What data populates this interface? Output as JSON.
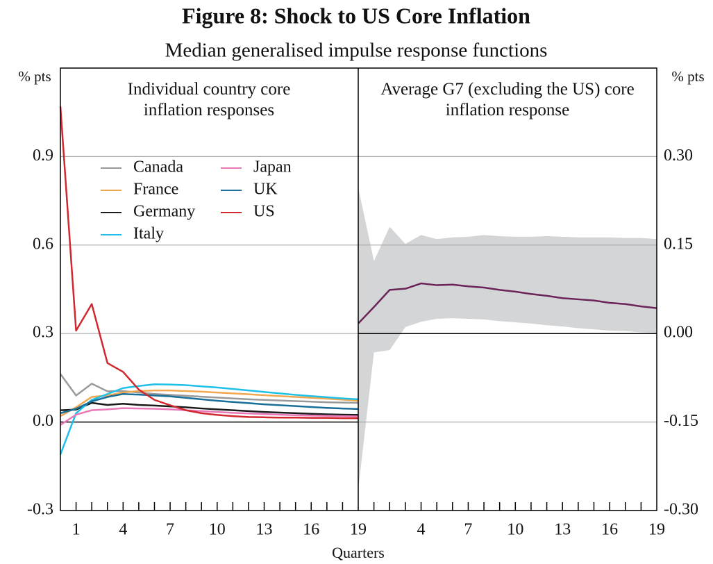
{
  "title": "Figure 8: Shock to US Core Inflation",
  "subtitle": "Median generalised impulse response functions",
  "x_label": "Quarters",
  "chart_data": [
    {
      "type": "line",
      "title": "Individual country core inflation responses",
      "y_label": "% pts",
      "x": [
        0,
        1,
        2,
        3,
        4,
        5,
        6,
        7,
        8,
        9,
        10,
        11,
        12,
        13,
        14,
        15,
        16,
        17,
        18,
        19
      ],
      "xlim": [
        0,
        19
      ],
      "xticks": [
        1,
        4,
        7,
        10,
        13,
        16,
        19
      ],
      "xminorticks": [
        1,
        2,
        3,
        4,
        5,
        6,
        7,
        8,
        9,
        10,
        11,
        12,
        13,
        14,
        15,
        16,
        17,
        18
      ],
      "ylim": [
        -0.3,
        1.2
      ],
      "yticks": [
        -0.3,
        {
          "value": 0,
          "label": "0.0"
        },
        0.3,
        0.6,
        0.9
      ],
      "grid": true,
      "series": [
        {
          "name": "Canada",
          "color": "#9a9a9a",
          "values": [
            0.163,
            0.09,
            0.13,
            0.104,
            0.105,
            0.1,
            0.095,
            0.092,
            0.089,
            0.086,
            0.083,
            0.08,
            0.077,
            0.075,
            0.073,
            0.071,
            0.069,
            0.067,
            0.066,
            0.065
          ]
        },
        {
          "name": "France",
          "color": "#f0a850",
          "values": [
            0.02,
            0.05,
            0.085,
            0.09,
            0.1,
            0.105,
            0.107,
            0.107,
            0.105,
            0.103,
            0.1,
            0.097,
            0.094,
            0.091,
            0.088,
            0.085,
            0.082,
            0.079,
            0.076,
            0.072
          ]
        },
        {
          "name": "Germany",
          "color": "#1a1a1a",
          "values": [
            0.04,
            0.042,
            0.065,
            0.058,
            0.062,
            0.058,
            0.056,
            0.053,
            0.05,
            0.046,
            0.043,
            0.04,
            0.037,
            0.034,
            0.032,
            0.03,
            0.028,
            0.026,
            0.025,
            0.024
          ]
        },
        {
          "name": "Italy",
          "color": "#1ec0e8",
          "values": [
            -0.11,
            0.03,
            0.075,
            0.095,
            0.115,
            0.122,
            0.128,
            0.127,
            0.125,
            0.121,
            0.117,
            0.112,
            0.107,
            0.102,
            0.097,
            0.092,
            0.088,
            0.084,
            0.08,
            0.077
          ]
        },
        {
          "name": "Japan",
          "color": "#e878b8",
          "values": [
            -0.01,
            0.025,
            0.04,
            0.043,
            0.047,
            0.046,
            0.045,
            0.043,
            0.04,
            0.037,
            0.034,
            0.031,
            0.029,
            0.027,
            0.025,
            0.023,
            0.022,
            0.021,
            0.02,
            0.019
          ]
        },
        {
          "name": "UK",
          "color": "#1a6e9a",
          "values": [
            0.03,
            0.045,
            0.07,
            0.085,
            0.095,
            0.093,
            0.09,
            0.087,
            0.082,
            0.077,
            0.072,
            0.068,
            0.064,
            0.06,
            0.057,
            0.054,
            0.051,
            0.048,
            0.046,
            0.044
          ]
        },
        {
          "name": "US",
          "color": "#d0282e",
          "values": [
            1.07,
            0.31,
            0.4,
            0.2,
            0.17,
            0.11,
            0.075,
            0.057,
            0.04,
            0.03,
            0.024,
            0.02,
            0.017,
            0.016,
            0.015,
            0.015,
            0.014,
            0.014,
            0.013,
            0.013
          ]
        }
      ]
    },
    {
      "type": "line",
      "title": "Average G7 (excluding the US) core inflation response",
      "y_label": "% pts",
      "x": [
        0,
        1,
        2,
        3,
        4,
        5,
        6,
        7,
        8,
        9,
        10,
        11,
        12,
        13,
        14,
        15,
        16,
        17,
        18,
        19
      ],
      "xlim": [
        0,
        19
      ],
      "xticks": [
        4,
        7,
        10,
        13,
        16,
        19
      ],
      "xminorticks": [
        1,
        2,
        3,
        4,
        5,
        6,
        7,
        8,
        9,
        10,
        11,
        12,
        13,
        14,
        15,
        16,
        17,
        18
      ],
      "ylim": [
        -0.3,
        0.45
      ],
      "yticks": [
        {
          "value": -0.3,
          "label": "-0.30"
        },
        {
          "value": -0.15,
          "label": "-0.15"
        },
        {
          "value": 0,
          "label": "0.00"
        },
        {
          "value": 0.15,
          "label": "0.15"
        },
        {
          "value": 0.3,
          "label": "0.30"
        }
      ],
      "grid": true,
      "band": {
        "color": "#d4d5d7",
        "upper": [
          0.247,
          0.123,
          0.181,
          0.152,
          0.167,
          0.16,
          0.163,
          0.164,
          0.167,
          0.165,
          0.164,
          0.164,
          0.165,
          0.164,
          0.163,
          0.163,
          0.163,
          0.162,
          0.162,
          0.16
        ],
        "lower": [
          -0.265,
          -0.032,
          -0.028,
          0.011,
          0.02,
          0.025,
          0.026,
          0.025,
          0.024,
          0.021,
          0.019,
          0.017,
          0.014,
          0.012,
          0.009,
          0.007,
          0.005,
          0.004,
          0.002,
          0.001
        ]
      },
      "series": [
        {
          "color": "#6b2458",
          "values": [
            0.017,
            0.045,
            0.074,
            0.076,
            0.085,
            0.082,
            0.083,
            0.08,
            0.078,
            0.074,
            0.071,
            0.067,
            0.064,
            0.06,
            0.058,
            0.056,
            0.052,
            0.05,
            0.046,
            0.043
          ]
        }
      ]
    }
  ]
}
